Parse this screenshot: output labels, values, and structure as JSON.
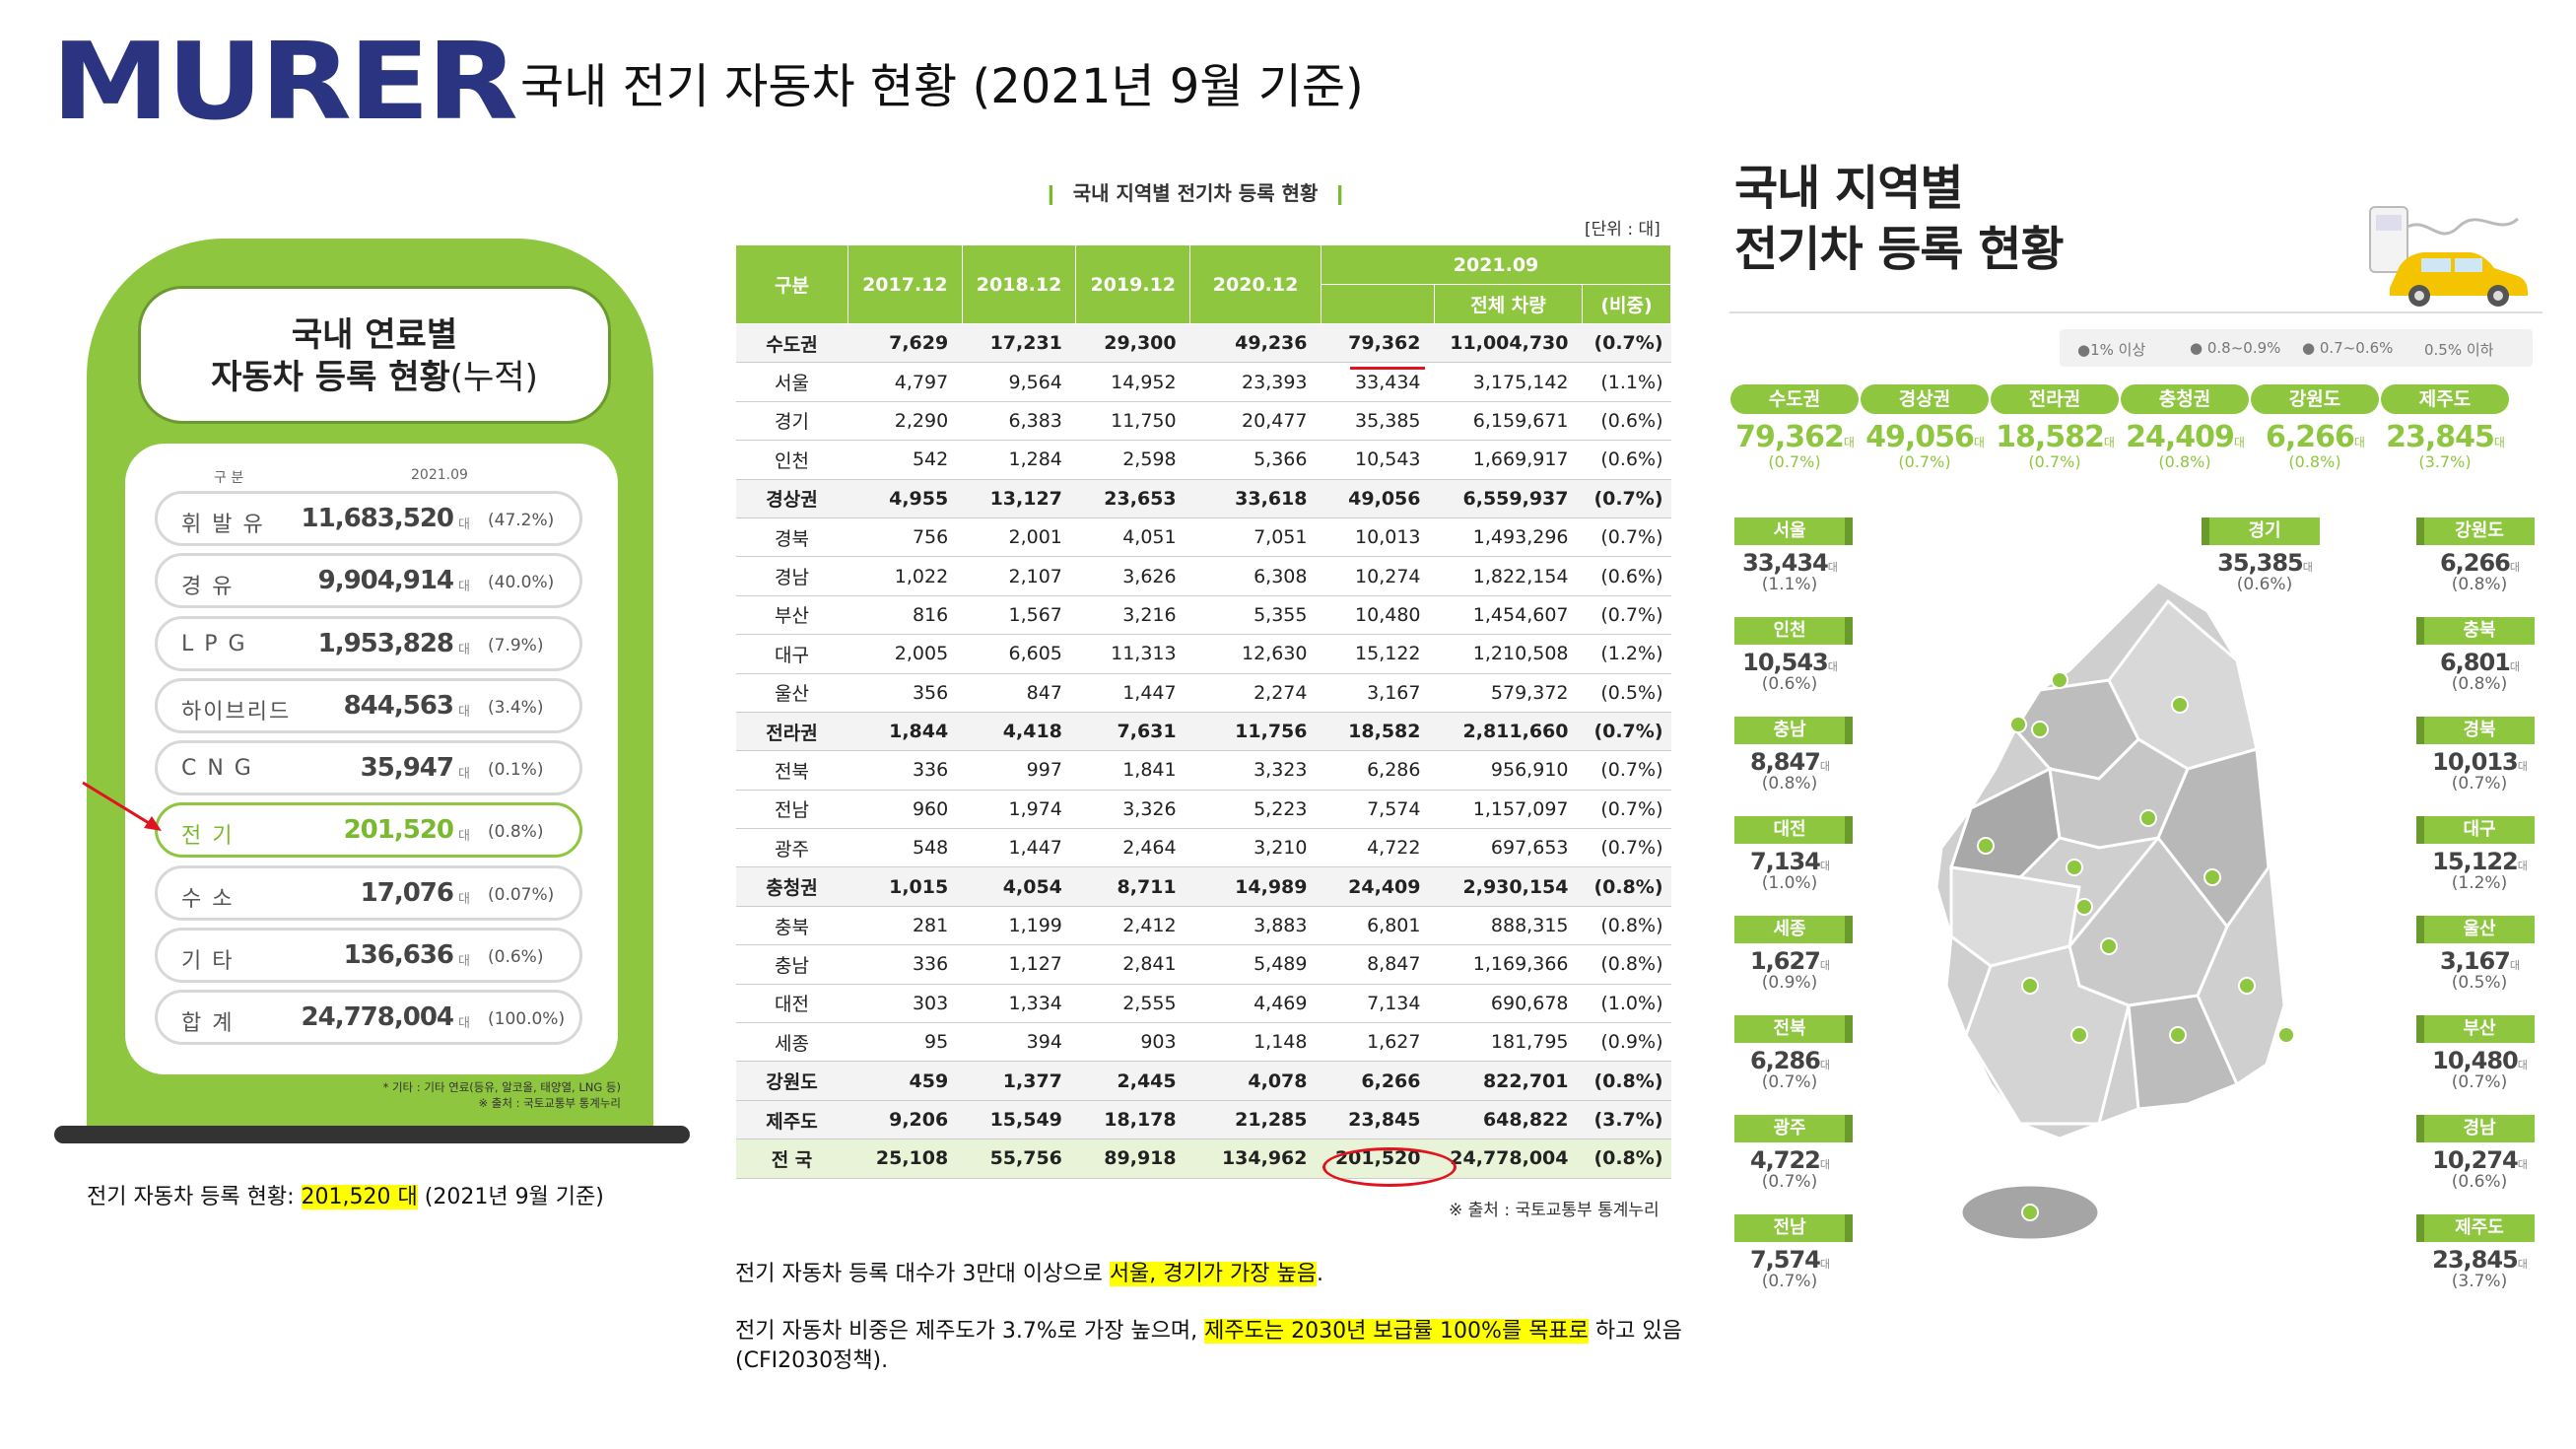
{
  "logo": "MURER",
  "slide_title": "국내 전기 자동차 현황 (2021년 9월 기준)",
  "fuel_panel": {
    "title_line1": "국내 연료별",
    "title_line2_bold": "자동차 등록 현황",
    "title_line2_suffix": "(누적)",
    "col_label": "구 분",
    "col_date": "2021.09",
    "unit": "대",
    "rows": [
      {
        "name": "휘 발 유",
        "value": "11,683,520",
        "pct": "(47.2%)"
      },
      {
        "name": "경 유",
        "value": "9,904,914",
        "pct": "(40.0%)"
      },
      {
        "name": "L P G",
        "value": "1,953,828",
        "pct": "(7.9%)"
      },
      {
        "name": "하이브리드",
        "value": "844,563",
        "pct": "(3.4%)"
      },
      {
        "name": "C N G",
        "value": "35,947",
        "pct": "(0.1%)"
      },
      {
        "name": "전 기",
        "value": "201,520",
        "pct": "(0.8%)"
      },
      {
        "name": "수 소",
        "value": "17,076",
        "pct": "(0.07%)"
      },
      {
        "name": "기 타",
        "value": "136,636",
        "pct": "(0.6%)"
      },
      {
        "name": "합 계",
        "value": "24,778,004",
        "pct": "(100.0%)"
      }
    ],
    "note1": "* 기타 : 기타 연료(등유, 알코올, 태양열, LNG 등)",
    "note2": "※ 출처 : 국토교통부 통계누리"
  },
  "left_caption": {
    "prefix": "전기 자동차 등록 현황: ",
    "highlight": "201,520 대",
    "suffix": " (2021년 9월 기준)"
  },
  "table": {
    "title": "국내 지역별 전기차 등록 현황",
    "bar": "❙",
    "unit": "[단위 : 대]",
    "headers": {
      "region": "구분",
      "y2017": "2017.12",
      "y2018": "2018.12",
      "y2019": "2019.12",
      "y2020": "2020.12",
      "y2021": "2021.09",
      "total": "전체 차량",
      "ratio": "(비중)"
    },
    "rows": [
      {
        "r": "수도권",
        "a": "7,629",
        "b": "17,231",
        "c": "29,300",
        "d": "49,236",
        "e": "79,362",
        "t": "11,004,730",
        "p": "(0.7%)",
        "bold": true
      },
      {
        "r": "서울",
        "a": "4,797",
        "b": "9,564",
        "c": "14,952",
        "d": "23,393",
        "e": "33,434",
        "t": "3,175,142",
        "p": "(1.1%)"
      },
      {
        "r": "경기",
        "a": "2,290",
        "b": "6,383",
        "c": "11,750",
        "d": "20,477",
        "e": "35,385",
        "t": "6,159,671",
        "p": "(0.6%)"
      },
      {
        "r": "인천",
        "a": "542",
        "b": "1,284",
        "c": "2,598",
        "d": "5,366",
        "e": "10,543",
        "t": "1,669,917",
        "p": "(0.6%)"
      },
      {
        "r": "경상권",
        "a": "4,955",
        "b": "13,127",
        "c": "23,653",
        "d": "33,618",
        "e": "49,056",
        "t": "6,559,937",
        "p": "(0.7%)",
        "bold": true
      },
      {
        "r": "경북",
        "a": "756",
        "b": "2,001",
        "c": "4,051",
        "d": "7,051",
        "e": "10,013",
        "t": "1,493,296",
        "p": "(0.7%)"
      },
      {
        "r": "경남",
        "a": "1,022",
        "b": "2,107",
        "c": "3,626",
        "d": "6,308",
        "e": "10,274",
        "t": "1,822,154",
        "p": "(0.6%)"
      },
      {
        "r": "부산",
        "a": "816",
        "b": "1,567",
        "c": "3,216",
        "d": "5,355",
        "e": "10,480",
        "t": "1,454,607",
        "p": "(0.7%)"
      },
      {
        "r": "대구",
        "a": "2,005",
        "b": "6,605",
        "c": "11,313",
        "d": "12,630",
        "e": "15,122",
        "t": "1,210,508",
        "p": "(1.2%)"
      },
      {
        "r": "울산",
        "a": "356",
        "b": "847",
        "c": "1,447",
        "d": "2,274",
        "e": "3,167",
        "t": "579,372",
        "p": "(0.5%)"
      },
      {
        "r": "전라권",
        "a": "1,844",
        "b": "4,418",
        "c": "7,631",
        "d": "11,756",
        "e": "18,582",
        "t": "2,811,660",
        "p": "(0.7%)",
        "bold": true
      },
      {
        "r": "전북",
        "a": "336",
        "b": "997",
        "c": "1,841",
        "d": "3,323",
        "e": "6,286",
        "t": "956,910",
        "p": "(0.7%)"
      },
      {
        "r": "전남",
        "a": "960",
        "b": "1,974",
        "c": "3,326",
        "d": "5,223",
        "e": "7,574",
        "t": "1,157,097",
        "p": "(0.7%)"
      },
      {
        "r": "광주",
        "a": "548",
        "b": "1,447",
        "c": "2,464",
        "d": "3,210",
        "e": "4,722",
        "t": "697,653",
        "p": "(0.7%)"
      },
      {
        "r": "충청권",
        "a": "1,015",
        "b": "4,054",
        "c": "8,711",
        "d": "14,989",
        "e": "24,409",
        "t": "2,930,154",
        "p": "(0.8%)",
        "bold": true
      },
      {
        "r": "충북",
        "a": "281",
        "b": "1,199",
        "c": "2,412",
        "d": "3,883",
        "e": "6,801",
        "t": "888,315",
        "p": "(0.8%)"
      },
      {
        "r": "충남",
        "a": "336",
        "b": "1,127",
        "c": "2,841",
        "d": "5,489",
        "e": "8,847",
        "t": "1,169,366",
        "p": "(0.8%)"
      },
      {
        "r": "대전",
        "a": "303",
        "b": "1,334",
        "c": "2,555",
        "d": "4,469",
        "e": "7,134",
        "t": "690,678",
        "p": "(1.0%)"
      },
      {
        "r": "세종",
        "a": "95",
        "b": "394",
        "c": "903",
        "d": "1,148",
        "e": "1,627",
        "t": "181,795",
        "p": "(0.9%)"
      },
      {
        "r": "강원도",
        "a": "459",
        "b": "1,377",
        "c": "2,445",
        "d": "4,078",
        "e": "6,266",
        "t": "822,701",
        "p": "(0.8%)",
        "bold": true
      },
      {
        "r": "제주도",
        "a": "9,206",
        "b": "15,549",
        "c": "18,178",
        "d": "21,285",
        "e": "23,845",
        "t": "648,822",
        "p": "(3.7%)",
        "bold": true
      },
      {
        "r": "전 국",
        "a": "25,108",
        "b": "55,756",
        "c": "89,918",
        "d": "134,962",
        "e": "201,520",
        "t": "24,778,004",
        "p": "(0.8%)",
        "total": true
      }
    ],
    "source": "※ 출처 : 국토교통부 통계누리"
  },
  "notes": {
    "n1_prefix": "전기 자동차 등록 대수가 3만대 이상으로 ",
    "n1_highlight": "서울, 경기가 가장 높음",
    "n1_suffix": ".",
    "n2_prefix": "전기 자동차 비중은 제주도가 3.7%로 가장 높으며, ",
    "n2_highlight": "제주도는 2030년 보급률 100%를 목표로",
    "n2_suffix": " 하고 있음 (CFI2030정책)."
  },
  "infographic": {
    "title_line1": "국내 지역별",
    "title_line2": "전기차 등록 현황",
    "unit": "대",
    "legend": [
      "●1% 이상",
      "● 0.8~0.9%",
      "● 0.7~0.6%",
      "0.5% 이하"
    ],
    "summary": [
      {
        "label": "수도권",
        "value": "79,362",
        "pct": "(0.7%)"
      },
      {
        "label": "경상권",
        "value": "49,056",
        "pct": "(0.7%)"
      },
      {
        "label": "전라권",
        "value": "18,582",
        "pct": "(0.7%)"
      },
      {
        "label": "충청권",
        "value": "24,409",
        "pct": "(0.8%)"
      },
      {
        "label": "강원도",
        "value": "6,266",
        "pct": "(0.8%)"
      },
      {
        "label": "제주도",
        "value": "23,845",
        "pct": "(3.7%)"
      }
    ],
    "left_regions": [
      {
        "label": "서울",
        "value": "33,434",
        "pct": "(1.1%)"
      },
      {
        "label": "인천",
        "value": "10,543",
        "pct": "(0.6%)"
      },
      {
        "label": "충남",
        "value": "8,847",
        "pct": "(0.8%)"
      },
      {
        "label": "대전",
        "value": "7,134",
        "pct": "(1.0%)"
      },
      {
        "label": "세종",
        "value": "1,627",
        "pct": "(0.9%)"
      },
      {
        "label": "전북",
        "value": "6,286",
        "pct": "(0.7%)"
      },
      {
        "label": "광주",
        "value": "4,722",
        "pct": "(0.7%)"
      },
      {
        "label": "전남",
        "value": "7,574",
        "pct": "(0.7%)"
      }
    ],
    "right_regions": [
      {
        "label": "강원도",
        "value": "6,266",
        "pct": "(0.8%)"
      },
      {
        "label": "충북",
        "value": "6,801",
        "pct": "(0.8%)"
      },
      {
        "label": "경북",
        "value": "10,013",
        "pct": "(0.7%)"
      },
      {
        "label": "대구",
        "value": "15,122",
        "pct": "(1.2%)"
      },
      {
        "label": "울산",
        "value": "3,167",
        "pct": "(0.5%)"
      },
      {
        "label": "부산",
        "value": "10,480",
        "pct": "(0.7%)"
      },
      {
        "label": "경남",
        "value": "10,274",
        "pct": "(0.6%)"
      },
      {
        "label": "제주도",
        "value": "23,845",
        "pct": "(3.7%)"
      }
    ],
    "mid_region": {
      "label": "경기",
      "value": "35,385",
      "pct": "(0.6%)"
    }
  },
  "colors": {
    "accent": "#8ec63f",
    "logo": "#2b3480",
    "mark": "#e0141e"
  }
}
